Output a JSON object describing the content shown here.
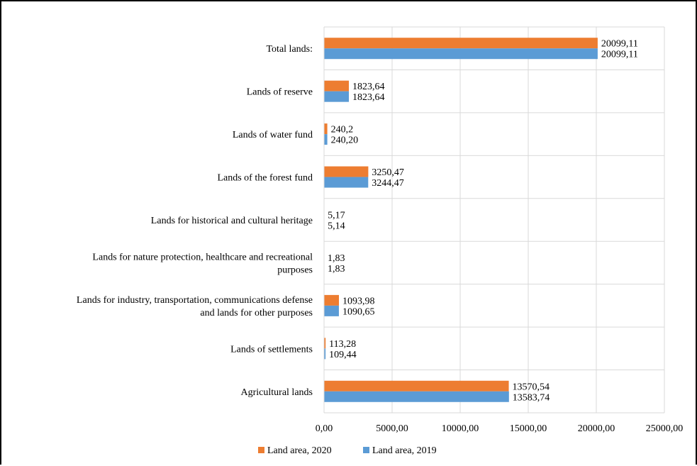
{
  "chart_data": {
    "type": "bar",
    "orientation": "horizontal",
    "title": "",
    "xlabel": "",
    "ylabel": "",
    "categories": [
      "Agricultural lands",
      "Lands of settlements",
      "Lands for industry, transportation, communications defense and lands for other purposes",
      "Lands for nature protection, healthcare and recreational purposes",
      "Lands for historical and cultural heritage",
      "Lands of the forest fund",
      "Lands of water fund",
      "Lands of reserve",
      "Total lands:"
    ],
    "category_lines": [
      [
        "Agricultural lands"
      ],
      [
        "Lands of settlements"
      ],
      [
        "Lands for industry, transportation, communications defense",
        "and lands for other purposes"
      ],
      [
        "Lands for nature protection, healthcare and recreational",
        "purposes"
      ],
      [
        "Lands for historical and cultural heritage"
      ],
      [
        "Lands of the forest fund"
      ],
      [
        "Lands of water fund"
      ],
      [
        "Lands of reserve"
      ],
      [
        "Total lands:"
      ]
    ],
    "series": [
      {
        "name": "Land area, 2020",
        "color": "#ED7D31",
        "values": [
          13570.54,
          113.28,
          1093.98,
          1.83,
          5.17,
          3250.47,
          240.2,
          1823.64,
          20099.11
        ],
        "labels": [
          "13570,54",
          "113,28",
          "1093,98",
          "1,83",
          "5,17",
          "3250,47",
          "240,2",
          "1823,64",
          "20099,11"
        ]
      },
      {
        "name": "Land area, 2019",
        "color": "#5B9BD5",
        "values": [
          13583.74,
          109.44,
          1090.65,
          1.83,
          5.14,
          3244.47,
          240.2,
          1823.64,
          20099.11
        ],
        "labels": [
          "13583,74",
          "109,44",
          "1090,65",
          "1,83",
          "5,14",
          "3244,47",
          "240,20",
          "1823,64",
          "20099,11"
        ]
      }
    ],
    "xlim": [
      0,
      25000
    ],
    "xticks": [
      0,
      5000,
      10000,
      15000,
      20000,
      25000
    ],
    "xtick_labels": [
      "0,00",
      "5000,00",
      "10000,00",
      "15000,00",
      "20000,00",
      "25000,00"
    ],
    "legend_position": "bottom",
    "legend_order": [
      "Land area, 2020",
      "Land area, 2019"
    ],
    "grid": true
  }
}
